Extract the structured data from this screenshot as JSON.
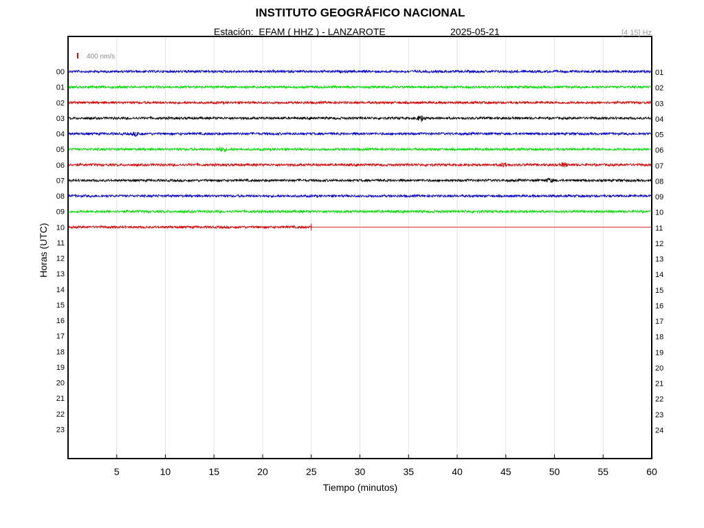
{
  "header": {
    "title": "INSTITUTO GEOGRÁFICO NACIONAL",
    "station_label": "Estación:  EFAM ( HHZ ) - LANZAROTE",
    "date": "2025-05-21",
    "filter_band": "[4 15] Hz"
  },
  "chart_data": {
    "type": "line",
    "title": "INSTITUTO GEOGRÁFICO NACIONAL",
    "xlabel": "Tiempo (minutos)",
    "ylabel": "Horas (UTC)",
    "xlim": [
      0,
      60
    ],
    "x_ticks": [
      5,
      10,
      15,
      20,
      25,
      30,
      35,
      40,
      45,
      50,
      55,
      60
    ],
    "left_hour_labels": [
      "00",
      "01",
      "02",
      "03",
      "04",
      "05",
      "06",
      "07",
      "08",
      "09",
      "10",
      "11",
      "12",
      "13",
      "14",
      "15",
      "16",
      "17",
      "18",
      "19",
      "20",
      "21",
      "22",
      "23"
    ],
    "right_hour_labels": [
      "01",
      "02",
      "03",
      "04",
      "05",
      "06",
      "07",
      "08",
      "09",
      "10",
      "11",
      "12",
      "13",
      "14",
      "15",
      "16",
      "17",
      "18",
      "19",
      "20",
      "21",
      "22",
      "23",
      "24"
    ],
    "scale_label": "400 nm/s",
    "scale_color": "#dd0000",
    "grid": "vertical",
    "trace_colors": [
      "#0000cc",
      "#00e000",
      "#dd0000",
      "#000000"
    ],
    "traces": [
      {
        "hour": "00",
        "color": "#0000cc",
        "end_minute": 60
      },
      {
        "hour": "01",
        "color": "#00e000",
        "end_minute": 60
      },
      {
        "hour": "02",
        "color": "#dd0000",
        "end_minute": 60
      },
      {
        "hour": "03",
        "color": "#000000",
        "end_minute": 60,
        "events": [
          {
            "minute": 36.3,
            "amp": 2.2
          }
        ]
      },
      {
        "hour": "04",
        "color": "#0000cc",
        "end_minute": 60,
        "events": [
          {
            "minute": 7.0,
            "amp": 1.4
          }
        ]
      },
      {
        "hour": "05",
        "color": "#00e000",
        "end_minute": 60,
        "events": [
          {
            "minute": 15.8,
            "amp": 1.6
          }
        ]
      },
      {
        "hour": "06",
        "color": "#dd0000",
        "end_minute": 60,
        "events": [
          {
            "minute": 44.8,
            "amp": 1.6
          },
          {
            "minute": 51.0,
            "amp": 1.5
          }
        ]
      },
      {
        "hour": "07",
        "color": "#000000",
        "end_minute": 60,
        "events": [
          {
            "minute": 49.5,
            "amp": 1.4
          }
        ]
      },
      {
        "hour": "08",
        "color": "#0000cc",
        "end_minute": 60
      },
      {
        "hour": "09",
        "color": "#00e000",
        "end_minute": 60
      },
      {
        "hour": "10",
        "color": "#dd0000",
        "end_minute": 25.0
      }
    ]
  }
}
